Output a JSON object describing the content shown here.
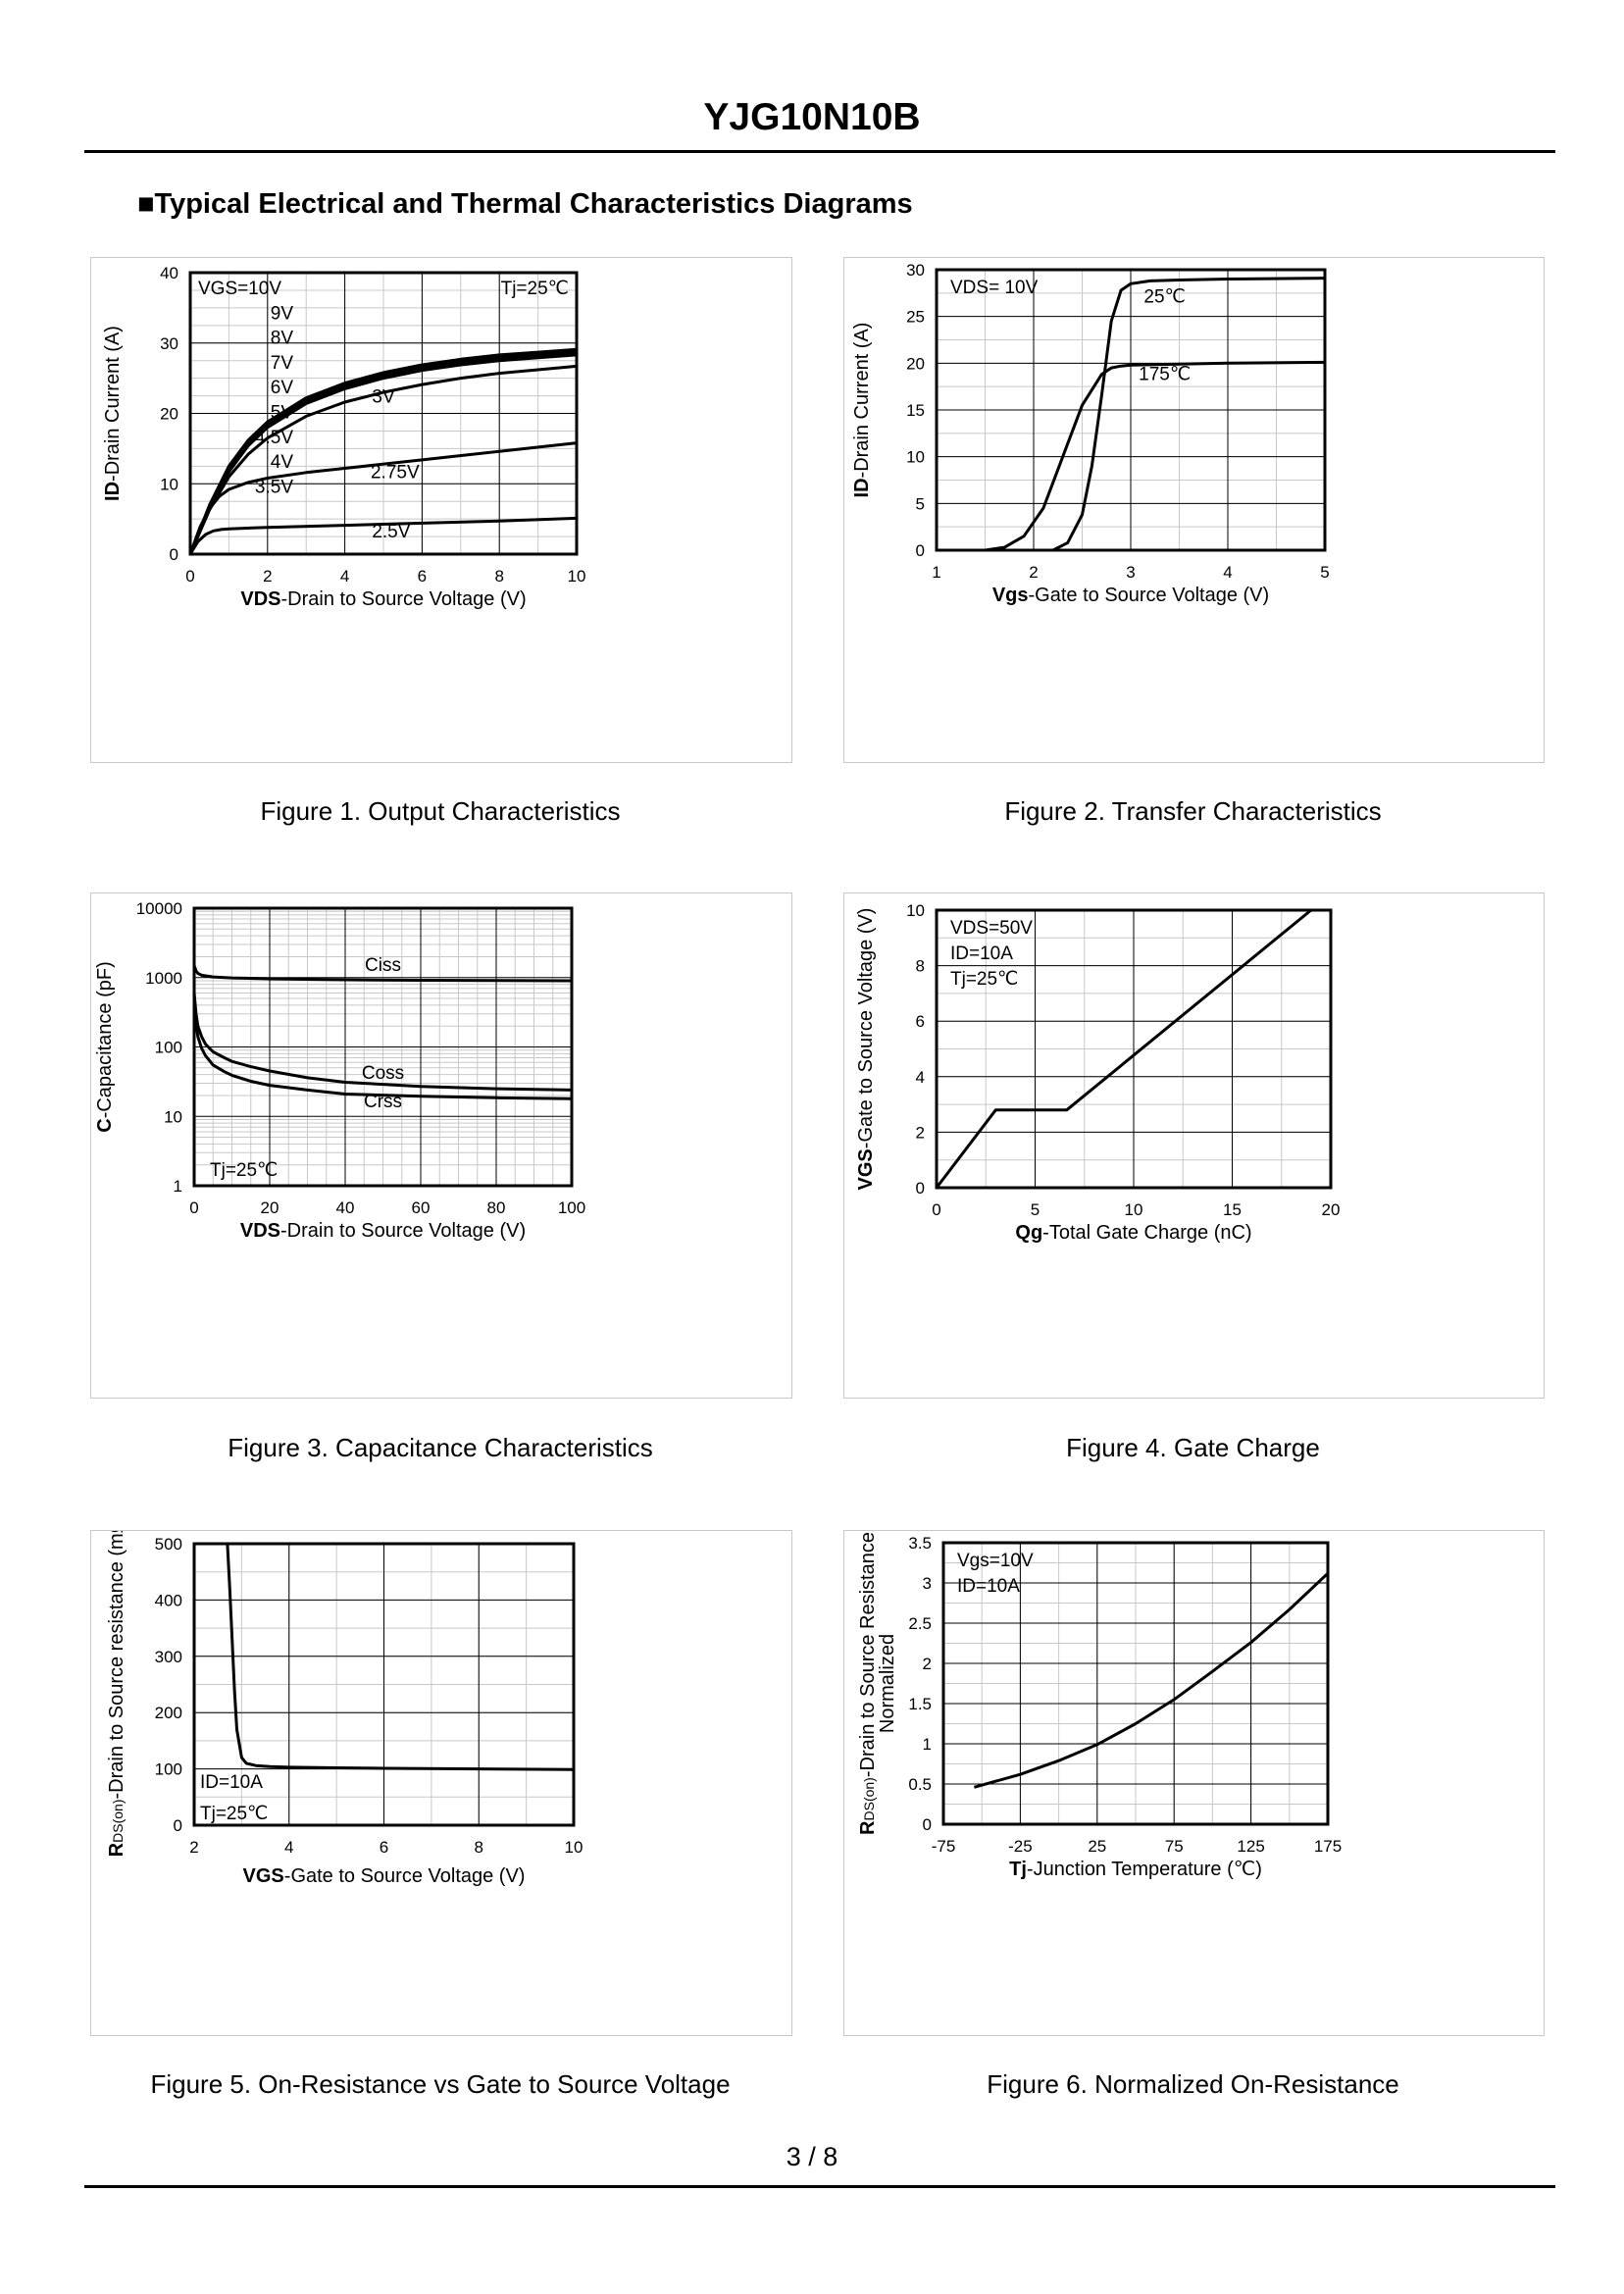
{
  "header": {
    "title": "YJG10N10B",
    "section": "■Typical Electrical and Thermal Characteristics Diagrams",
    "page": "3 / 8"
  },
  "chart_data": [
    {
      "id": "fig1",
      "type": "line",
      "caption": "Figure 1.  Output Characteristics",
      "xlabel_bold": "VDS",
      "xlabel_rest": "-Drain to Source Voltage (V)",
      "ylabel_bold": "ID",
      "ylabel_rest": "-Drain Current (A)",
      "xlim": [
        0,
        10
      ],
      "ylim": [
        0,
        40
      ],
      "xticks": [
        0,
        2,
        4,
        6,
        8,
        10
      ],
      "yticks": [
        0,
        10,
        20,
        30,
        40
      ],
      "legend_lines": [
        "VGS=10V",
        "9V",
        "8V",
        "7V",
        "6V",
        "5V",
        "4.5V",
        "4V",
        "3.5V"
      ],
      "condition": "Tj=25℃",
      "curve_labels": [
        {
          "text": "3V",
          "x": 5,
          "y": 21.5
        },
        {
          "text": "2.75V",
          "x": 5.3,
          "y": 10.8
        },
        {
          "text": "2.5V",
          "x": 5.2,
          "y": 2.4
        }
      ],
      "series": [
        {
          "name": "VGS=10V",
          "x": [
            0,
            0.5,
            1,
            1.5,
            2,
            3,
            4,
            5,
            6,
            7,
            8,
            9,
            10
          ],
          "y": [
            0,
            7,
            12.5,
            16.2,
            18.8,
            22.2,
            24.3,
            25.8,
            26.9,
            27.7,
            28.3,
            28.7,
            29.1
          ]
        },
        {
          "name": "9V",
          "x": [
            0,
            0.5,
            1,
            1.5,
            2,
            3,
            4,
            5,
            6,
            7,
            8,
            9,
            10
          ],
          "y": [
            0,
            6.9,
            12.4,
            16.1,
            18.7,
            22.1,
            24.2,
            25.7,
            26.8,
            27.6,
            28.2,
            28.6,
            29.0
          ]
        },
        {
          "name": "8V",
          "x": [
            0,
            0.5,
            1,
            1.5,
            2,
            3,
            4,
            5,
            6,
            7,
            8,
            9,
            10
          ],
          "y": [
            0,
            6.9,
            12.3,
            16.0,
            18.6,
            22.0,
            24.1,
            25.6,
            26.7,
            27.5,
            28.1,
            28.5,
            28.9
          ]
        },
        {
          "name": "7V",
          "x": [
            0,
            0.5,
            1,
            1.5,
            2,
            3,
            4,
            5,
            6,
            7,
            8,
            9,
            10
          ],
          "y": [
            0,
            6.8,
            12.2,
            15.9,
            18.5,
            21.9,
            24.0,
            25.5,
            26.6,
            27.4,
            28.0,
            28.4,
            28.8
          ]
        },
        {
          "name": "6V",
          "x": [
            0,
            0.5,
            1,
            1.5,
            2,
            3,
            4,
            5,
            6,
            7,
            8,
            9,
            10
          ],
          "y": [
            0,
            6.8,
            12.1,
            15.8,
            18.4,
            21.8,
            23.9,
            25.4,
            26.5,
            27.3,
            27.9,
            28.3,
            28.7
          ]
        },
        {
          "name": "5V",
          "x": [
            0,
            0.5,
            1,
            1.5,
            2,
            3,
            4,
            5,
            6,
            7,
            8,
            9,
            10
          ],
          "y": [
            0,
            6.7,
            12.0,
            15.7,
            18.3,
            21.7,
            23.8,
            25.3,
            26.4,
            27.2,
            27.8,
            28.2,
            28.6
          ]
        },
        {
          "name": "4.5V",
          "x": [
            0,
            0.5,
            1,
            1.5,
            2,
            3,
            4,
            5,
            6,
            7,
            8,
            9,
            10
          ],
          "y": [
            0,
            6.7,
            11.9,
            15.6,
            18.2,
            21.6,
            23.7,
            25.2,
            26.3,
            27.1,
            27.7,
            28.1,
            28.5
          ]
        },
        {
          "name": "4V",
          "x": [
            0,
            0.5,
            1,
            1.5,
            2,
            3,
            4,
            5,
            6,
            7,
            8,
            9,
            10
          ],
          "y": [
            0,
            6.6,
            11.8,
            15.5,
            18.1,
            21.5,
            23.6,
            25.1,
            26.2,
            27.0,
            27.6,
            28.0,
            28.4
          ]
        },
        {
          "name": "3.5V",
          "x": [
            0,
            0.5,
            1,
            1.5,
            2,
            3,
            4,
            5,
            6,
            7,
            8,
            9,
            10
          ],
          "y": [
            0,
            6.5,
            11.7,
            15.4,
            18.0,
            21.4,
            23.5,
            25.0,
            26.1,
            26.9,
            27.5,
            27.9,
            28.3
          ]
        },
        {
          "name": "3V",
          "x": [
            0,
            0.5,
            1,
            1.5,
            2,
            3,
            4,
            5,
            6,
            7,
            8,
            9,
            10
          ],
          "y": [
            0,
            6.3,
            11.0,
            14.2,
            16.5,
            19.6,
            21.6,
            23.0,
            24.1,
            25.0,
            25.7,
            26.2,
            26.7
          ]
        },
        {
          "name": "2.75V",
          "x": [
            0,
            0.25,
            0.5,
            0.75,
            1,
            1.5,
            2,
            3,
            4,
            6,
            8,
            10
          ],
          "y": [
            0,
            3.8,
            6.5,
            8.2,
            9.2,
            10.2,
            10.8,
            11.6,
            12.2,
            13.4,
            14.6,
            15.8
          ]
        },
        {
          "name": "2.5V",
          "x": [
            0,
            0.2,
            0.4,
            0.6,
            0.8,
            1,
            2,
            4,
            6,
            8,
            10
          ],
          "y": [
            0,
            1.8,
            2.8,
            3.3,
            3.5,
            3.6,
            3.8,
            4.1,
            4.4,
            4.7,
            5.1
          ]
        }
      ]
    },
    {
      "id": "fig2",
      "type": "line",
      "caption": "Figure 2.  Transfer Characteristics",
      "xlabel_bold": "Vgs",
      "xlabel_rest": "-Gate to Source Voltage (V)",
      "ylabel_bold": "ID",
      "ylabel_rest": "-Drain Current (A)",
      "xlim": [
        1,
        5
      ],
      "ylim": [
        0,
        30
      ],
      "xticks": [
        1,
        2,
        3,
        4,
        5
      ],
      "yticks": [
        0,
        5,
        10,
        15,
        20,
        25,
        30
      ],
      "legend_lines": [
        "VDS= 10V"
      ],
      "curve_labels": [
        {
          "text": "25℃",
          "x": 3.35,
          "y": 26.5
        },
        {
          "text": "175℃",
          "x": 3.35,
          "y": 18.2
        }
      ],
      "series": [
        {
          "name": "25℃",
          "x": [
            1,
            2.2,
            2.35,
            2.5,
            2.6,
            2.7,
            2.8,
            2.9,
            3,
            3.2,
            3.5,
            4,
            5
          ],
          "y": [
            0,
            0,
            0.8,
            3.8,
            9,
            16.5,
            24.5,
            27.8,
            28.5,
            28.8,
            28.9,
            29,
            29.1
          ]
        },
        {
          "name": "175℃",
          "x": [
            1,
            1.5,
            1.7,
            1.9,
            2.1,
            2.3,
            2.5,
            2.7,
            2.8,
            2.9,
            3,
            3.5,
            4,
            5
          ],
          "y": [
            0,
            0,
            0.3,
            1.5,
            4.5,
            10,
            15.5,
            18.8,
            19.5,
            19.7,
            19.8,
            19.9,
            20,
            20.1
          ]
        }
      ]
    },
    {
      "id": "fig3",
      "type": "line",
      "caption": "Figure 3.  Capacitance Characteristics",
      "xlabel_bold": "VDS",
      "xlabel_rest": "-Drain to Source Voltage (V)",
      "ylabel_bold": "C",
      "ylabel_rest": "-Capacitance (pF)",
      "xlim": [
        0,
        100
      ],
      "ylim": [
        1,
        10000
      ],
      "yscale": "log",
      "xticks": [
        0,
        20,
        40,
        60,
        80,
        100
      ],
      "yticks": [
        1,
        10,
        100,
        1000,
        10000
      ],
      "condition": "Tj=25℃",
      "curve_labels": [
        {
          "text": "Ciss",
          "x": 50,
          "y": 1250
        },
        {
          "text": "Coss",
          "x": 50,
          "y": 35
        },
        {
          "text": "Crss",
          "x": 50,
          "y": 13.5
        }
      ],
      "series": [
        {
          "name": "Ciss",
          "x": [
            0,
            0.5,
            1,
            2,
            5,
            10,
            20,
            40,
            60,
            80,
            100
          ],
          "y": [
            1500,
            1250,
            1150,
            1080,
            1020,
            990,
            960,
            930,
            915,
            905,
            900
          ]
        },
        {
          "name": "Coss",
          "x": [
            0,
            0.5,
            1,
            2,
            3,
            5,
            8,
            10,
            15,
            20,
            30,
            40,
            60,
            80,
            100
          ],
          "y": [
            600,
            300,
            200,
            140,
            110,
            85,
            70,
            62,
            52,
            45,
            36,
            31,
            27,
            25,
            24
          ]
        },
        {
          "name": "Crss",
          "x": [
            0,
            0.5,
            1,
            2,
            3,
            5,
            8,
            10,
            15,
            20,
            30,
            40,
            60,
            80,
            100
          ],
          "y": [
            500,
            220,
            140,
            95,
            75,
            55,
            44,
            39,
            32,
            28,
            24,
            21,
            19.5,
            18.5,
            18
          ]
        }
      ]
    },
    {
      "id": "fig4",
      "type": "line",
      "caption": "Figure 4.  Gate Charge",
      "xlabel_bold": "Qg",
      "xlabel_rest": "-Total Gate Charge (nC)",
      "ylabel_bold": "VGS",
      "ylabel_rest": "-Gate to Source Voltage (V)",
      "xlim": [
        0,
        20
      ],
      "ylim": [
        0,
        10
      ],
      "xticks": [
        0,
        5,
        10,
        15,
        20
      ],
      "yticks": [
        0,
        2,
        4,
        6,
        8,
        10
      ],
      "legend_lines": [
        "VDS=50V",
        "ID=10A",
        "Tj=25℃"
      ],
      "series": [
        {
          "name": "VGS",
          "x": [
            0,
            3,
            6.6,
            19
          ],
          "y": [
            0,
            2.8,
            2.8,
            10
          ]
        }
      ]
    },
    {
      "id": "fig5",
      "type": "line",
      "caption": "Figure 5.  On-Resistance vs Gate to Source Voltage",
      "xlabel_bold": "VGS",
      "xlabel_rest": "-Gate to Source Voltage (V)",
      "ylabel_r": "R",
      "ylabel_sub": "DS(on)",
      "ylabel_rest": "-Drain to Source resistance (mΩ)",
      "xlim": [
        2,
        10
      ],
      "ylim": [
        0,
        500
      ],
      "xticks": [
        2,
        4,
        6,
        8,
        10
      ],
      "yticks": [
        0,
        100,
        200,
        300,
        400,
        500
      ],
      "legend_lines": [
        "ID=10A",
        "Tj=25℃"
      ],
      "series": [
        {
          "name": "RDS(on)",
          "x": [
            2.7,
            2.75,
            2.8,
            2.85,
            2.9,
            3,
            3.1,
            3.3,
            3.6,
            4,
            5,
            6,
            8,
            10
          ],
          "y": [
            500,
            420,
            330,
            240,
            170,
            120,
            110,
            106,
            104,
            103,
            102,
            101,
            100,
            99
          ]
        }
      ]
    },
    {
      "id": "fig6",
      "type": "line",
      "caption": "Figure 6.  Normalized On-Resistance",
      "xlabel_bold": "Tj",
      "xlabel_rest": "-Junction  Temperature (℃)",
      "ylabel_r": "R",
      "ylabel_sub": "DS(on)",
      "ylabel_rest": "-Drain to Source Resistance",
      "ylabel_line2": "Normalized",
      "xlim": [
        -75,
        175
      ],
      "ylim": [
        0,
        3.5
      ],
      "xticks": [
        -75,
        -25,
        25,
        75,
        125,
        175
      ],
      "yticks": [
        "0",
        "0.5",
        "1",
        "1.5",
        "2",
        "2.5",
        "3",
        "3.5"
      ],
      "legend_lines": [
        "Vgs=10V",
        "ID=10A"
      ],
      "series": [
        {
          "name": "Normalized",
          "x": [
            -55,
            -25,
            0,
            25,
            50,
            75,
            100,
            125,
            150,
            175
          ],
          "y": [
            0.46,
            0.62,
            0.79,
            0.99,
            1.25,
            1.55,
            1.9,
            2.26,
            2.67,
            3.12
          ]
        }
      ]
    }
  ]
}
